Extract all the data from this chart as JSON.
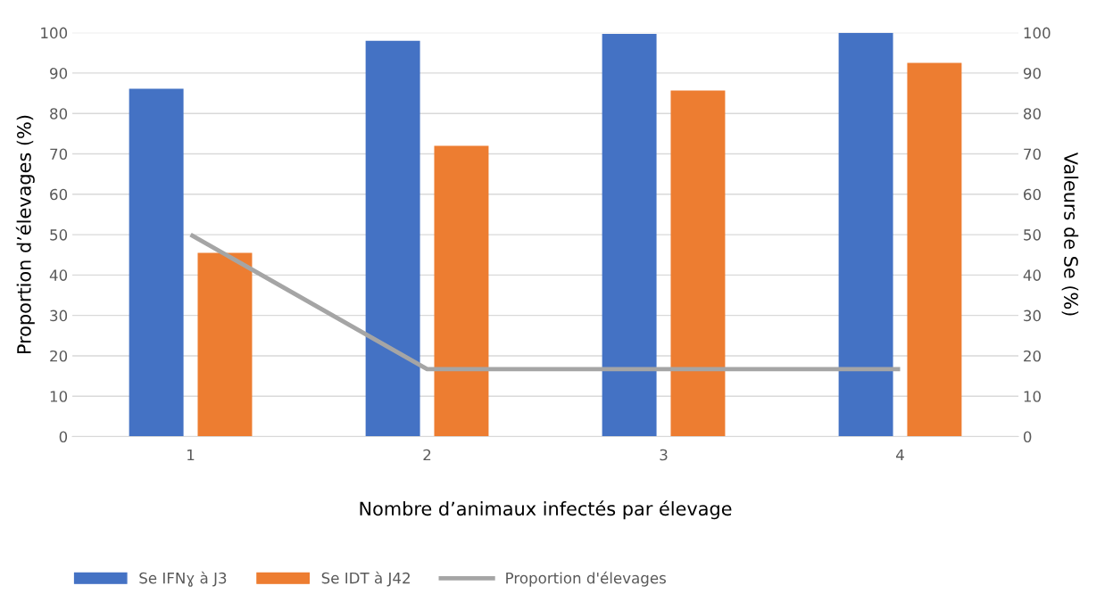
{
  "chart_data": {
    "type": "bar",
    "xlabel": "Nombre d’animaux infectés par élevage",
    "ylabel": "Proportion d’élevages (%)",
    "y2label": "Valeurs de Se (%)",
    "categories": [
      "1",
      "2",
      "3",
      "4"
    ],
    "series": [
      {
        "name": "Se IFNɣ à J3",
        "color": "#4472c4",
        "axis": "y2",
        "values": [
          86.1,
          98,
          99.7,
          100
        ]
      },
      {
        "name": "Se IDT à J42",
        "color": "#ed7d31",
        "axis": "y2",
        "values": [
          45.5,
          72,
          85.7,
          92.5
        ]
      },
      {
        "name": "Proportion d'élevages",
        "color": "#a5a5a5",
        "type": "line",
        "axis": "y",
        "values": [
          50,
          16.7,
          16.7,
          16.7
        ]
      }
    ],
    "ylim": [
      0,
      100
    ],
    "yticks": [
      0,
      10,
      20,
      30,
      40,
      50,
      60,
      70,
      80,
      90,
      100
    ],
    "y2lim": [
      0,
      100
    ],
    "y2ticks": [
      0,
      10,
      20,
      30,
      40,
      50,
      60,
      70,
      80,
      90,
      100
    ],
    "grid": "y",
    "legend": "bottom left",
    "marker": "none",
    "line_style": "solid"
  }
}
